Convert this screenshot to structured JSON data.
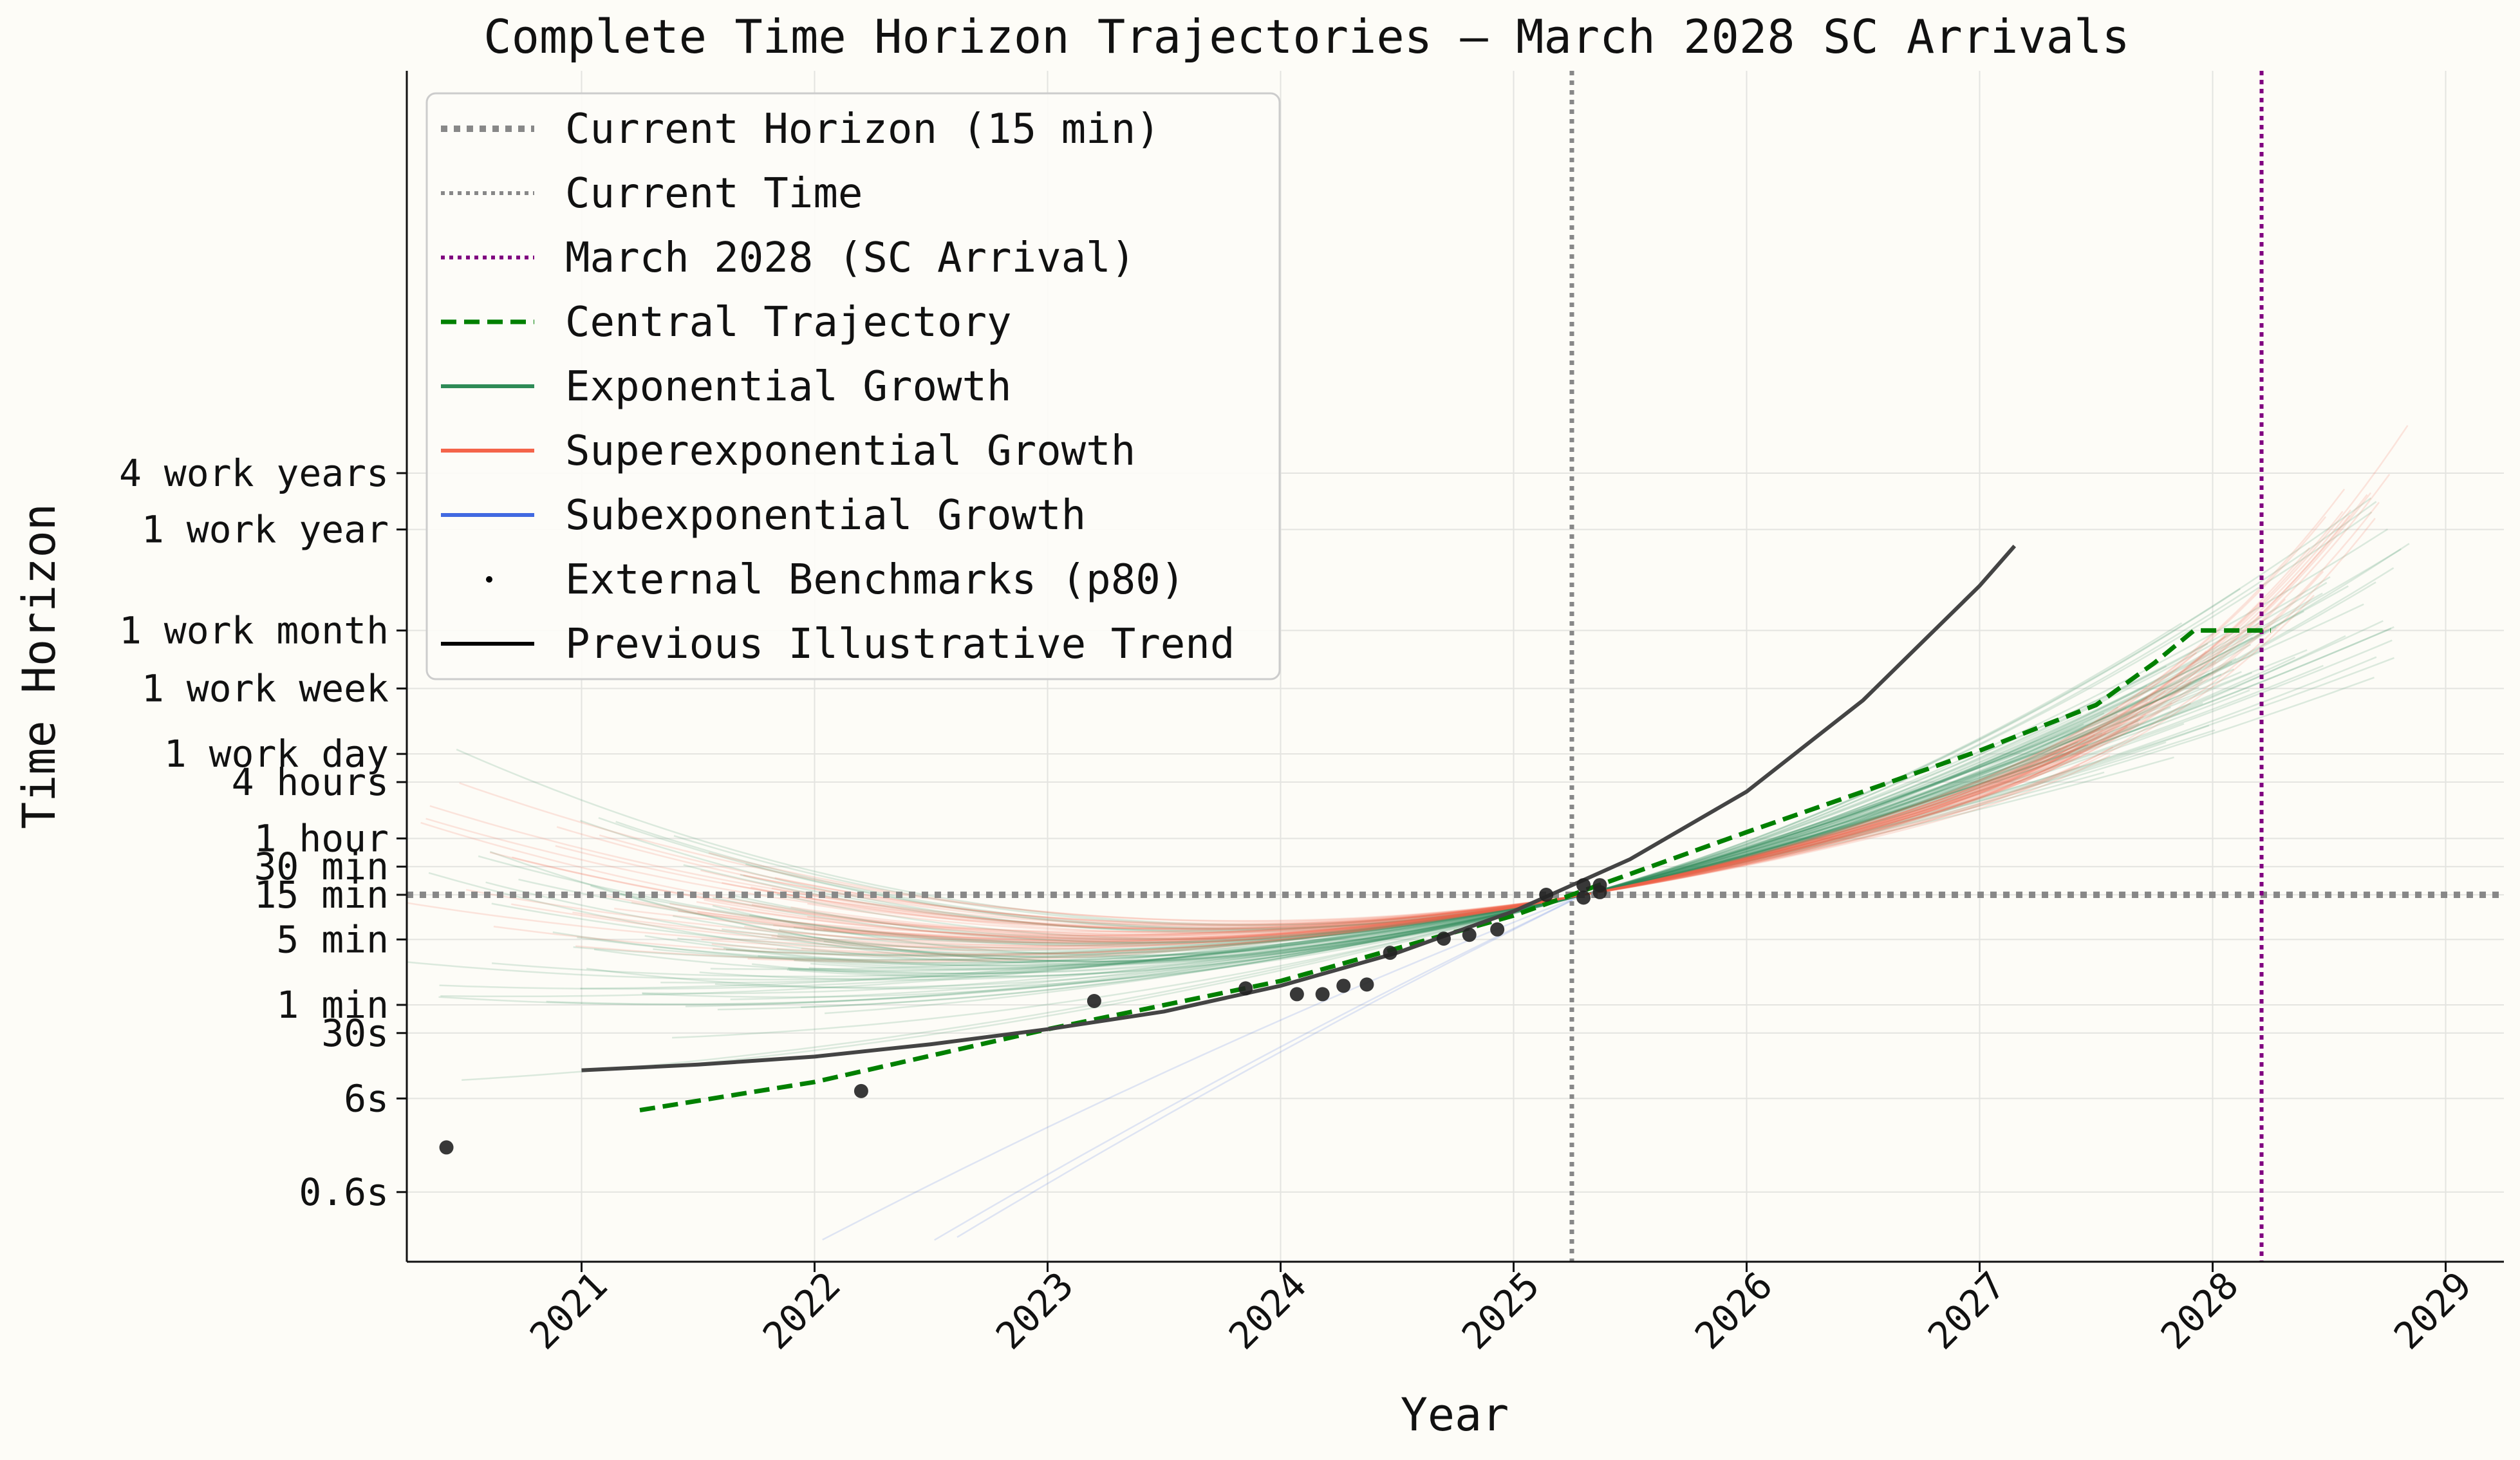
{
  "chart_data": {
    "type": "line",
    "title": "Complete Time Horizon Trajectories — March 2028 SC Arrivals",
    "xlabel": "Year",
    "ylabel": "Time Horizon",
    "x_range": [
      2020.25,
      2029.25
    ],
    "y_scale": "log (minutes)",
    "y_range_minutes": [
      0.003,
      30000000
    ],
    "x_ticks": [
      2021,
      2022,
      2023,
      2024,
      2025,
      2026,
      2027,
      2028,
      2029
    ],
    "x_tick_labels": [
      "2021",
      "2022",
      "2023",
      "2024",
      "2025",
      "2026",
      "2027",
      "2028",
      "2029"
    ],
    "y_ticks": [
      {
        "label": "0.6s",
        "minutes": 0.01
      },
      {
        "label": "6s",
        "minutes": 0.1
      },
      {
        "label": "30s",
        "minutes": 0.5
      },
      {
        "label": "1 min",
        "minutes": 1
      },
      {
        "label": "5 min",
        "minutes": 5
      },
      {
        "label": "15 min",
        "minutes": 15
      },
      {
        "label": "30 min",
        "minutes": 30
      },
      {
        "label": "1 hour",
        "minutes": 60
      },
      {
        "label": "4 hours",
        "minutes": 240
      },
      {
        "label": "1 work day",
        "minutes": 480
      },
      {
        "label": "1 work week",
        "minutes": 2400
      },
      {
        "label": "1 work month",
        "minutes": 10000
      },
      {
        "label": "1 work year",
        "minutes": 120000
      },
      {
        "label": "4 work years",
        "minutes": 480000
      }
    ],
    "grid": true,
    "legend_position": "top-left",
    "reference_lines": {
      "current_horizon_minutes": 15,
      "current_time_year": 2025.25,
      "sc_arrival_year": 2028.21
    },
    "series": [
      {
        "name": "Central Trajectory",
        "style": "dashed",
        "color": "#008000",
        "x": [
          2021.25,
          2022.0,
          2023.0,
          2024.0,
          2025.0,
          2025.5,
          2026.0,
          2026.5,
          2027.0,
          2027.5,
          2027.75,
          2027.92,
          2028.0,
          2028.25
        ],
        "y": [
          0.075,
          0.15,
          0.55,
          1.8,
          9,
          25,
          70,
          190,
          520,
          1600,
          4500,
          10000,
          10000,
          10000
        ]
      },
      {
        "name": "Previous Illustrative Trend",
        "style": "solid",
        "color": "#444444",
        "x": [
          2021.0,
          2021.5,
          2022.0,
          2022.5,
          2023.0,
          2023.5,
          2024.0,
          2024.5,
          2025.0,
          2025.5,
          2026.0,
          2026.5,
          2027.0,
          2027.15
        ],
        "y": [
          0.2,
          0.23,
          0.28,
          0.38,
          0.55,
          0.85,
          1.6,
          3.6,
          10,
          36,
          190,
          1800,
          30000,
          80000
        ]
      }
    ],
    "external_benchmarks_p80": {
      "name": "External Benchmarks (p80)",
      "x": [
        2020.42,
        2022.2,
        2023.2,
        2023.85,
        2024.07,
        2024.18,
        2024.27,
        2024.37,
        2024.47,
        2024.7,
        2024.81,
        2024.93,
        2025.14,
        2025.3,
        2025.3,
        2025.37,
        2025.37
      ],
      "y": [
        0.03,
        0.12,
        1.1,
        1.5,
        1.3,
        1.3,
        1.6,
        1.65,
        3.6,
        5.1,
        5.6,
        6.4,
        15,
        14,
        19,
        16,
        19
      ]
    },
    "legend": [
      {
        "label": "Current Horizon (15 min)"
      },
      {
        "label": "Current Time"
      },
      {
        "label": "March 2028 (SC Arrival)"
      },
      {
        "label": "Central Trajectory"
      },
      {
        "label": "Exponential Growth"
      },
      {
        "label": "Superexponential Growth"
      },
      {
        "label": "Subexponential Growth"
      },
      {
        "label": "External Benchmarks (p80)"
      },
      {
        "label": "Previous Illustrative Trend"
      }
    ],
    "colors": {
      "exponential": "#2e8b57",
      "superexponential": "#f4644a",
      "subexponential": "#4169e1",
      "current_horizon": "#888888",
      "current_time": "#888888",
      "sc_arrival": "#800080",
      "central": "#008000",
      "previous_trend": "#444444",
      "benchmark": "#222222"
    }
  }
}
